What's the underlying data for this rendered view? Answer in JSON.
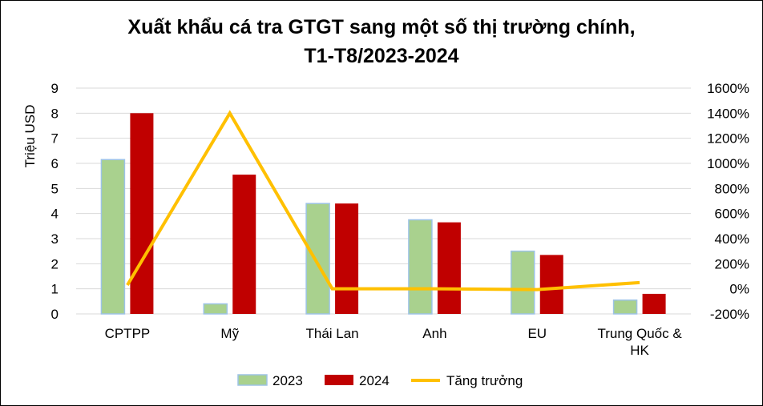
{
  "chart_data": {
    "type": "bar",
    "title_line1": "Xuất khẩu cá tra GTGT sang một số thị trường chính,",
    "title_line2": "T1-T8/2023-2024",
    "ylabel": "Triệu USD",
    "categories": [
      "CPTPP",
      "Mỹ",
      "Thái Lan",
      "Anh",
      "EU",
      "Trung Quốc & HK"
    ],
    "category_lines": [
      [
        "CPTPP"
      ],
      [
        "Mỹ"
      ],
      [
        "Thái Lan"
      ],
      [
        "Anh"
      ],
      [
        "EU"
      ],
      [
        "Trung Quốc &",
        "HK"
      ]
    ],
    "series": [
      {
        "name": "2023",
        "axis": "left",
        "kind": "bar",
        "color": "#a9d18e",
        "border": "#9dc3e6",
        "values": [
          6.15,
          0.4,
          4.4,
          3.75,
          2.5,
          0.55
        ]
      },
      {
        "name": "2024",
        "axis": "left",
        "kind": "bar",
        "color": "#c00000",
        "values": [
          8.0,
          5.55,
          4.4,
          3.65,
          2.35,
          0.8
        ]
      },
      {
        "name": "Tăng trưởng",
        "axis": "right",
        "kind": "line",
        "color": "#ffc000",
        "values": [
          30,
          1400,
          0,
          0,
          -6,
          50
        ]
      }
    ],
    "y_left": {
      "min": 0,
      "max": 9,
      "ticks": [
        "0",
        "1",
        "2",
        "3",
        "4",
        "5",
        "6",
        "7",
        "8",
        "9"
      ]
    },
    "y_right": {
      "min": -200,
      "max": 1600,
      "ticks": [
        "-200%",
        "0%",
        "200%",
        "400%",
        "600%",
        "800%",
        "1000%",
        "1200%",
        "1400%",
        "1600%"
      ]
    },
    "grid": true,
    "legend_position": "bottom"
  }
}
